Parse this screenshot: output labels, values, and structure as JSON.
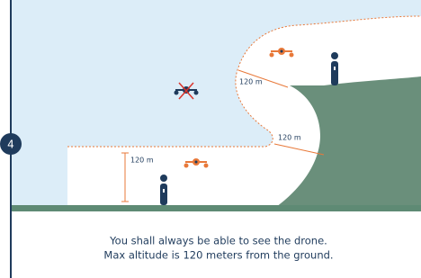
{
  "badge": "4",
  "labels": [
    "120 m",
    "120 m",
    "120 m"
  ],
  "caption": [
    "You shall always be able to see the drone.",
    "Max altitude is 120 meters from the ground."
  ]
}
